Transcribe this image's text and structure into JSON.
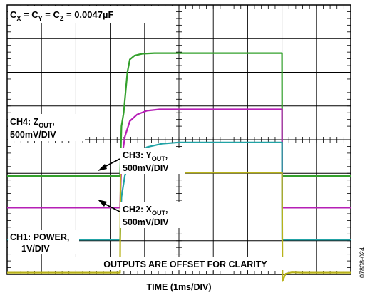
{
  "chart_data": {
    "type": "line",
    "title": "",
    "xlabel": "TIME (1ms/DIV)",
    "ylabel": "",
    "x_unit": "ms",
    "x_per_div": 1,
    "x_divisions": 10,
    "y_divisions": 8,
    "grid": true,
    "capacitor_note": {
      "c_x": "C",
      "c_x_sub": "X",
      "c_y": "C",
      "c_y_sub": "Y",
      "c_z": "C",
      "c_z_sub": "Z",
      "value": "= 0.0047µF"
    },
    "footer_note": "OUTPUTS ARE OFFSET FOR CLARITY",
    "figure_id": "07808-024",
    "series": [
      {
        "name": "Z",
        "label_prefix": "CH4: Z",
        "label_sub": "OUT",
        "label_suffix": ",",
        "scale_label": "500mV/DIV",
        "color": "#33a02c",
        "rise_time_ms": 0.15,
        "points": [
          [
            0,
            5.08
          ],
          [
            1,
            5.08
          ],
          [
            2,
            5.08
          ],
          [
            3,
            5.08
          ],
          [
            4,
            5.08
          ],
          [
            4.6,
            5.08
          ],
          [
            4.66,
            3.6
          ],
          [
            4.75,
            3.2
          ],
          [
            4.9,
            2.0
          ],
          [
            5.0,
            1.62
          ],
          [
            5.2,
            1.5
          ],
          [
            5.5,
            1.45
          ],
          [
            6,
            1.43
          ],
          [
            7,
            1.43
          ],
          [
            8,
            1.43
          ],
          [
            11.2,
            1.43
          ],
          [
            11.21,
            5.08
          ],
          [
            12,
            5.08
          ],
          [
            14,
            5.08
          ]
        ]
      },
      {
        "name": "Y",
        "label_prefix": "CH3: Y",
        "label_sub": "OUT",
        "label_suffix": ",",
        "scale_label": "500mV/DIV",
        "color": "#b61fb6",
        "rise_time_ms": 0.4,
        "points": [
          [
            0,
            6.02
          ],
          [
            1,
            6.02
          ],
          [
            2,
            6.02
          ],
          [
            3,
            6.02
          ],
          [
            4,
            6.02
          ],
          [
            4.6,
            6.02
          ],
          [
            4.66,
            4.6
          ],
          [
            4.8,
            3.9
          ],
          [
            5.0,
            3.45
          ],
          [
            5.3,
            3.25
          ],
          [
            5.7,
            3.14
          ],
          [
            6.2,
            3.1
          ],
          [
            7,
            3.1
          ],
          [
            8,
            3.1
          ],
          [
            11.2,
            3.1
          ],
          [
            11.21,
            6.02
          ],
          [
            12,
            6.02
          ],
          [
            14,
            6.02
          ]
        ]
      },
      {
        "name": "X",
        "label_prefix": "CH2: X",
        "label_sub": "OUT",
        "label_suffix": ",",
        "scale_label": "500mV/DIV",
        "color": "#21a3a6",
        "rise_time_ms": 0.7,
        "points": [
          [
            0,
            6.97
          ],
          [
            1,
            6.97
          ],
          [
            2,
            6.97
          ],
          [
            3,
            6.97
          ],
          [
            4,
            6.97
          ],
          [
            4.6,
            6.97
          ],
          [
            4.66,
            5.7
          ],
          [
            4.8,
            5.05
          ],
          [
            5.0,
            4.7
          ],
          [
            5.3,
            4.42
          ],
          [
            5.7,
            4.22
          ],
          [
            6.3,
            4.12
          ],
          [
            7,
            4.08
          ],
          [
            8,
            4.08
          ],
          [
            11.2,
            4.08
          ],
          [
            11.21,
            6.97
          ],
          [
            12,
            6.97
          ],
          [
            14,
            6.97
          ]
        ]
      },
      {
        "name": "POWER",
        "label_prefix": "CH1: POWER",
        "label_sub": "",
        "label_suffix": ",",
        "scale_label": "1V/DIV",
        "color": "#b8b21a",
        "rise_time_ms": 0,
        "points": [
          [
            0,
            7.95
          ],
          [
            1,
            7.95
          ],
          [
            2,
            7.95
          ],
          [
            3,
            7.95
          ],
          [
            4,
            7.95
          ],
          [
            4.6,
            7.95
          ],
          [
            4.62,
            4.98
          ],
          [
            11.2,
            4.98
          ],
          [
            11.22,
            8.2
          ],
          [
            11.35,
            7.98
          ],
          [
            11.6,
            7.94
          ],
          [
            12,
            7.95
          ],
          [
            14,
            7.95
          ]
        ]
      }
    ]
  }
}
